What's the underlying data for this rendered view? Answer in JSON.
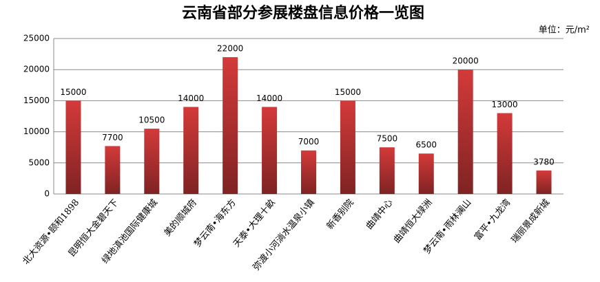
{
  "chart_data": {
    "type": "bar",
    "title": "云南省部分参展楼盘信息价格一览图",
    "unit_label": "单位：元/m²",
    "categories": [
      "北大资源•颐和1898",
      "昆明恒大金碧天下",
      "绿地滇池国际健康城",
      "美的顺城府",
      "梦云南•海东方",
      "天泰•大理十畝",
      "弥渡小河淌水温泉小镇",
      "新香别院",
      "曲靖中心",
      "曲靖恒大绿洲",
      "梦云南•雨林澜山",
      "富平•九龙湾",
      "瑞丽景成新城"
    ],
    "values": [
      15000,
      7700,
      10500,
      14000,
      22000,
      14000,
      7000,
      15000,
      7500,
      6500,
      20000,
      13000,
      3780
    ],
    "color": "#d43a3a",
    "ylim": [
      0,
      25000
    ],
    "yticks": [
      0,
      5000,
      10000,
      15000,
      20000,
      25000
    ],
    "grid": true
  }
}
